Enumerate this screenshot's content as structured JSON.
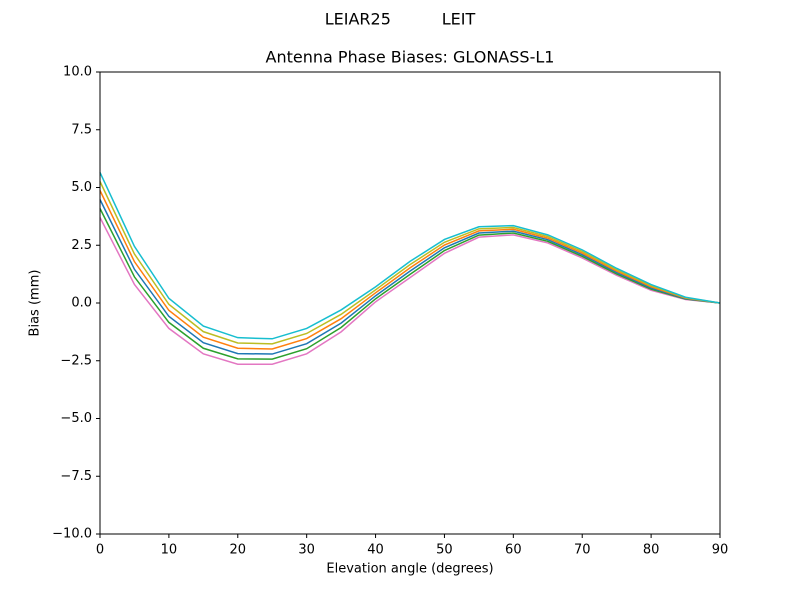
{
  "chart_data": {
    "type": "line",
    "suptitle": "LEIAR25          LEIT",
    "title": "Antenna Phase Biases: GLONASS-L1",
    "xlabel": "Elevation angle (degrees)",
    "ylabel": "Bias (mm)",
    "x": [
      0,
      5,
      10,
      15,
      20,
      25,
      30,
      35,
      40,
      45,
      50,
      55,
      60,
      65,
      70,
      75,
      80,
      85,
      90
    ],
    "xlim": [
      0,
      90
    ],
    "xticks": [
      0,
      10,
      20,
      30,
      40,
      50,
      60,
      70,
      80,
      90
    ],
    "ylim": [
      -10,
      10
    ],
    "yticks": [
      {
        "value": -10,
        "label": "−10.0"
      },
      {
        "value": -7.5,
        "label": "−7.5"
      },
      {
        "value": -5,
        "label": "−5.0"
      },
      {
        "value": -2.5,
        "label": "−2.5"
      },
      {
        "value": 0,
        "label": "0.0"
      },
      {
        "value": 2.5,
        "label": "2.5"
      },
      {
        "value": 5,
        "label": "5.0"
      },
      {
        "value": 7.5,
        "label": "7.5"
      },
      {
        "value": 10,
        "label": "10.0"
      }
    ],
    "series": [
      {
        "color": "#e377c2",
        "values": [
          3.7,
          0.8,
          -1.1,
          -2.2,
          -2.65,
          -2.65,
          -2.2,
          -1.25,
          0.05,
          1.1,
          2.15,
          2.85,
          2.95,
          2.6,
          1.95,
          1.2,
          0.55,
          0.15,
          0
        ]
      },
      {
        "color": "#2ca02c",
        "values": [
          4.09,
          1.13,
          -0.84,
          -1.96,
          -2.42,
          -2.43,
          -1.98,
          -1.06,
          0.18,
          1.24,
          2.27,
          2.94,
          3.03,
          2.67,
          2.02,
          1.26,
          0.6,
          0.17,
          0
        ]
      },
      {
        "color": "#1f77b4",
        "values": [
          4.48,
          1.46,
          -0.58,
          -1.72,
          -2.19,
          -2.21,
          -1.76,
          -0.87,
          0.31,
          1.38,
          2.39,
          3.03,
          3.11,
          2.74,
          2.09,
          1.32,
          0.65,
          0.19,
          0
        ]
      },
      {
        "color": "#ff7f0e",
        "values": [
          4.87,
          1.79,
          -0.32,
          -1.48,
          -1.96,
          -1.99,
          -1.54,
          -0.68,
          0.44,
          1.52,
          2.51,
          3.12,
          3.19,
          2.81,
          2.16,
          1.38,
          0.7,
          0.21,
          0
        ]
      },
      {
        "color": "#bcbd22",
        "values": [
          5.26,
          2.12,
          -0.06,
          -1.24,
          -1.73,
          -1.77,
          -1.32,
          -0.49,
          0.57,
          1.66,
          2.63,
          3.21,
          3.27,
          2.88,
          2.23,
          1.44,
          0.75,
          0.23,
          0
        ]
      },
      {
        "color": "#17becf",
        "values": [
          5.65,
          2.45,
          0.2,
          -1.0,
          -1.5,
          -1.55,
          -1.1,
          -0.3,
          0.7,
          1.8,
          2.75,
          3.3,
          3.35,
          2.95,
          2.3,
          1.5,
          0.8,
          0.25,
          0
        ]
      }
    ]
  }
}
